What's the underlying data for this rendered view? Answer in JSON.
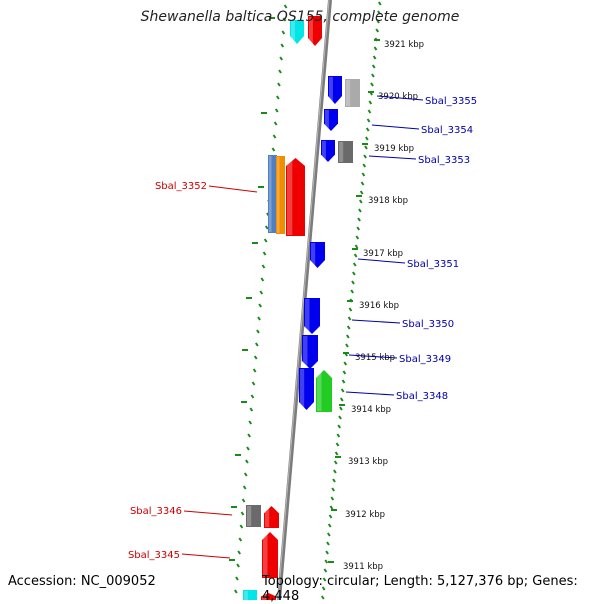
{
  "title": "Shewanella baltica OS155, complete genome",
  "footer": {
    "accession": "Accession: NC_009052",
    "topology": "Topology: circular; Length: 5,127,376 bp; Genes: 4,448"
  },
  "colors": {
    "backbone": "#808080",
    "tick": "#1a8a1a",
    "strand_tick": "#888888",
    "gene_blue": "#0000ee",
    "gene_red": "#ee0000",
    "gene_cyan": "#00e5e5",
    "gene_gray": "#aaaaaa",
    "gene_darkgray": "#6a6a6a",
    "gene_green": "#22cc22",
    "gene_steelblue": "#4f7fbf",
    "gene_orange": "#f28c00",
    "label_blue": "#0000aa",
    "label_red": "#cc0000"
  },
  "position_ticks": [
    {
      "label": "3921 kbp"
    },
    {
      "label": "3920 kbp"
    },
    {
      "label": "3919 kbp"
    },
    {
      "label": "3918 kbp"
    },
    {
      "label": "3917 kbp"
    },
    {
      "label": "3916 kbp"
    },
    {
      "label": "3915 kbp"
    },
    {
      "label": "3914 kbp"
    },
    {
      "label": "3913 kbp"
    },
    {
      "label": "3912 kbp"
    },
    {
      "label": "3911 kbp"
    }
  ],
  "gene_labels": [
    {
      "name": "Sbal_3355",
      "color": "blue"
    },
    {
      "name": "Sbal_3354",
      "color": "blue"
    },
    {
      "name": "Sbal_3353",
      "color": "blue"
    },
    {
      "name": "Sbal_3352",
      "color": "red"
    },
    {
      "name": "Sbal_3351",
      "color": "blue"
    },
    {
      "name": "Sbal_3350",
      "color": "blue"
    },
    {
      "name": "Sbal_3349",
      "color": "blue"
    },
    {
      "name": "Sbal_3348",
      "color": "blue"
    },
    {
      "name": "Sbal_3346",
      "color": "red"
    },
    {
      "name": "Sbal_3345",
      "color": "red"
    }
  ]
}
